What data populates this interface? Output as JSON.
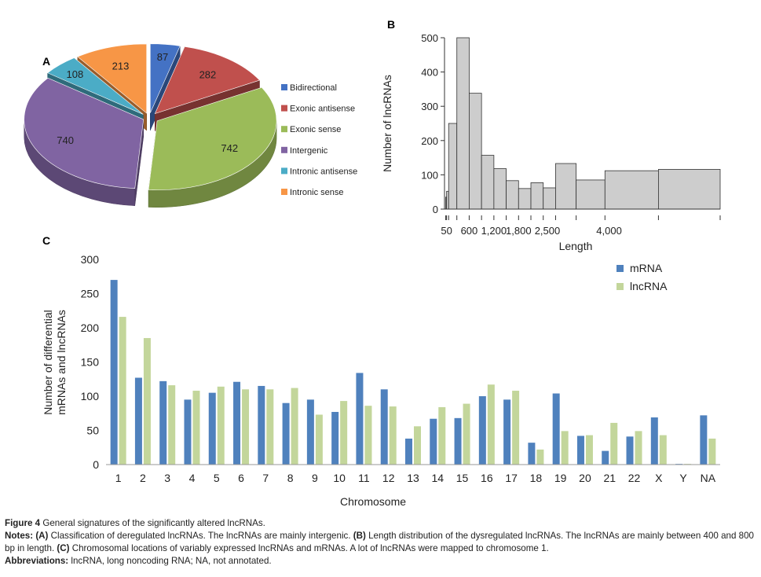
{
  "chart_data": [
    {
      "panel": "A",
      "type": "pie",
      "style": "3d-exploded",
      "categories": [
        "Bidirectional",
        "Exonic antisense",
        "Exonic sense",
        "Intergenic",
        "Intronic antisense",
        "Intronic sense"
      ],
      "values": [
        87,
        282,
        742,
        740,
        108,
        213
      ],
      "colors": [
        "#4472c4",
        "#c0504d",
        "#9bbb59",
        "#8064a2",
        "#4bacc6",
        "#f79646"
      ],
      "legend_position": "right"
    },
    {
      "panel": "B",
      "type": "bar",
      "style": "histogram",
      "bins": [
        {
          "from": 30,
          "to": 50,
          "value": 35
        },
        {
          "from": 50,
          "to": 100,
          "value": 52
        },
        {
          "from": 100,
          "to": 300,
          "value": 250
        },
        {
          "from": 300,
          "to": 600,
          "value": 500
        },
        {
          "from": 600,
          "to": 900,
          "value": 338
        },
        {
          "from": 900,
          "to": 1200,
          "value": 157
        },
        {
          "from": 1200,
          "to": 1500,
          "value": 118
        },
        {
          "from": 1500,
          "to": 1800,
          "value": 83
        },
        {
          "from": 1800,
          "to": 2100,
          "value": 60
        },
        {
          "from": 2100,
          "to": 2400,
          "value": 77
        },
        {
          "from": 2400,
          "to": 2700,
          "value": 62
        },
        {
          "from": 2700,
          "to": 3200,
          "value": 133
        },
        {
          "from": 3200,
          "to": 3900,
          "value": 85
        },
        {
          "from": 3900,
          "to": 5200,
          "value": 112
        },
        {
          "from": 5200,
          "to": 6700,
          "value": 116
        }
      ],
      "xlabel": "Length",
      "ylabel": "Number of lncRNAs",
      "xticks": [
        50,
        600,
        1200,
        1800,
        2500,
        4000
      ],
      "xtick_labels": [
        "50",
        "600",
        "1,200",
        "1,800",
        "2,500",
        "4,000"
      ],
      "yticks": [
        0,
        100,
        200,
        300,
        400,
        500
      ],
      "ylim": [
        0,
        500
      ],
      "xlim": [
        0,
        6700
      ]
    },
    {
      "panel": "C",
      "type": "bar",
      "categories": [
        "1",
        "2",
        "3",
        "4",
        "5",
        "6",
        "7",
        "8",
        "9",
        "10",
        "11",
        "12",
        "13",
        "14",
        "15",
        "16",
        "17",
        "18",
        "19",
        "20",
        "21",
        "22",
        "X",
        "Y",
        "NA"
      ],
      "series": [
        {
          "name": "mRNA",
          "color": "#4f81bd",
          "values": [
            270,
            127,
            122,
            95,
            105,
            121,
            115,
            90,
            95,
            77,
            134,
            110,
            38,
            67,
            68,
            100,
            95,
            32,
            104,
            42,
            20,
            41,
            69,
            1,
            72
          ]
        },
        {
          "name": "lncRNA",
          "color": "#c3d69b",
          "values": [
            216,
            185,
            116,
            108,
            114,
            110,
            110,
            112,
            73,
            93,
            86,
            85,
            56,
            84,
            89,
            117,
            108,
            22,
            49,
            43,
            61,
            49,
            43,
            1,
            38
          ]
        }
      ],
      "xlabel": "Chromosome",
      "ylabel": "Number of differential mRNAs and lncRNAs",
      "ylabel_lines": [
        "Number of differential",
        "mRNAs and lncRNAs"
      ],
      "yticks": [
        0,
        50,
        100,
        150,
        200,
        250,
        300
      ],
      "ylim": [
        0,
        300
      ],
      "legend_position": "top-right"
    }
  ],
  "panel_labels": {
    "a": "A",
    "b": "B",
    "c": "C"
  },
  "caption": {
    "title_bold": "Figure 4",
    "title_text": " General signatures of the significantly altered lncRNAs.",
    "notes_bold": "Notes:",
    "notes_a_label": "(A)",
    "notes_a_text": " Classification of deregulated lncRNAs. The lncRNAs are mainly intergenic. ",
    "notes_b_label": "(B)",
    "notes_b_text": " Length distribution of the dysregulated lncRNAs. The lncRNAs are mainly between 400 and 800 bp in length. ",
    "notes_c_label": "(C)",
    "notes_c_text": " Chromosomal locations of variably expressed lncRNAs and mRNAs. A lot of lncRNAs were mapped to chromosome 1.",
    "abbrev_bold": "Abbreviations:",
    "abbrev_text": " lncRNA, long noncoding RNA; NA, not annotated."
  }
}
